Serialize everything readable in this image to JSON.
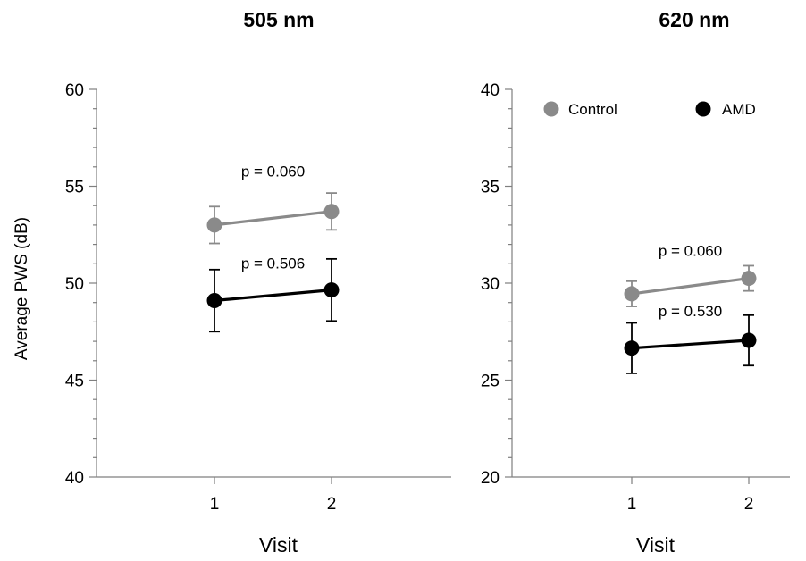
{
  "chart_data": [
    {
      "type": "line",
      "title": "505 nm",
      "xlabel": "Visit",
      "ylabel": "Average PWS (dB)",
      "categories": [
        "1",
        "2"
      ],
      "ylim": [
        40,
        60
      ],
      "yticks": [
        "40",
        "45",
        "50",
        "55",
        "60"
      ],
      "grid": false,
      "series": [
        {
          "name": "Control",
          "values": [
            53.0,
            53.7
          ],
          "error": [
            0.95,
            0.95
          ],
          "color": "#8a8a8a"
        },
        {
          "name": "AMD",
          "values": [
            49.1,
            49.65
          ],
          "error": [
            1.6,
            1.6
          ],
          "color": "#000000"
        }
      ],
      "annotations": [
        {
          "text": "p = 0.060",
          "x": 1.5,
          "y": 55.5
        },
        {
          "text": "p = 0.506",
          "x": 1.5,
          "y": 50.75
        }
      ]
    },
    {
      "type": "line",
      "title": "620 nm",
      "xlabel": "Visit",
      "ylabel": "",
      "categories": [
        "1",
        "2"
      ],
      "ylim": [
        20,
        40
      ],
      "yticks": [
        "20",
        "25",
        "30",
        "35",
        "40"
      ],
      "grid": false,
      "legend_position": "top",
      "series": [
        {
          "name": "Control",
          "values": [
            29.45,
            30.25
          ],
          "error": [
            0.65,
            0.65
          ],
          "color": "#8a8a8a"
        },
        {
          "name": "AMD",
          "values": [
            26.65,
            27.05
          ],
          "error": [
            1.3,
            1.3
          ],
          "color": "#000000"
        }
      ],
      "annotations": [
        {
          "text": "p = 0.060",
          "x": 1.5,
          "y": 31.4
        },
        {
          "text": "p = 0.530",
          "x": 1.5,
          "y": 28.3
        }
      ]
    }
  ]
}
